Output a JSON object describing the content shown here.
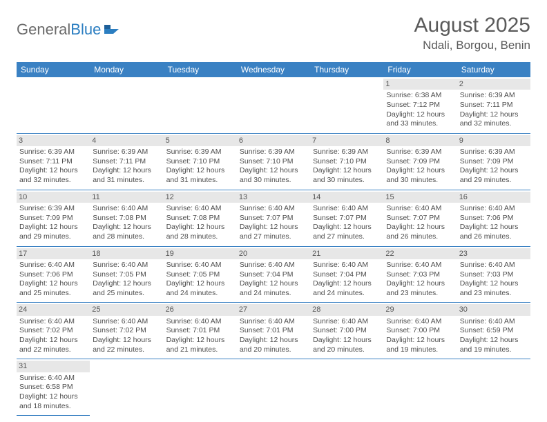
{
  "brand": {
    "part1": "General",
    "part2": "Blue"
  },
  "title": "August 2025",
  "location": "Ndali, Borgou, Benin",
  "colors": {
    "header_bg": "#3a81c3",
    "header_text": "#ffffff",
    "daynum_bg": "#e7e7e7",
    "row_border": "#3a81c3",
    "text": "#4d4d4d",
    "brand_gray": "#6a6a6a",
    "brand_blue": "#2b7ec1"
  },
  "weekdays": [
    "Sunday",
    "Monday",
    "Tuesday",
    "Wednesday",
    "Thursday",
    "Friday",
    "Saturday"
  ],
  "leading_blanks": 5,
  "days": [
    {
      "n": 1,
      "sunrise": "6:38 AM",
      "sunset": "7:12 PM",
      "daylight": "12 hours and 33 minutes."
    },
    {
      "n": 2,
      "sunrise": "6:39 AM",
      "sunset": "7:11 PM",
      "daylight": "12 hours and 32 minutes."
    },
    {
      "n": 3,
      "sunrise": "6:39 AM",
      "sunset": "7:11 PM",
      "daylight": "12 hours and 32 minutes."
    },
    {
      "n": 4,
      "sunrise": "6:39 AM",
      "sunset": "7:11 PM",
      "daylight": "12 hours and 31 minutes."
    },
    {
      "n": 5,
      "sunrise": "6:39 AM",
      "sunset": "7:10 PM",
      "daylight": "12 hours and 31 minutes."
    },
    {
      "n": 6,
      "sunrise": "6:39 AM",
      "sunset": "7:10 PM",
      "daylight": "12 hours and 30 minutes."
    },
    {
      "n": 7,
      "sunrise": "6:39 AM",
      "sunset": "7:10 PM",
      "daylight": "12 hours and 30 minutes."
    },
    {
      "n": 8,
      "sunrise": "6:39 AM",
      "sunset": "7:09 PM",
      "daylight": "12 hours and 30 minutes."
    },
    {
      "n": 9,
      "sunrise": "6:39 AM",
      "sunset": "7:09 PM",
      "daylight": "12 hours and 29 minutes."
    },
    {
      "n": 10,
      "sunrise": "6:39 AM",
      "sunset": "7:09 PM",
      "daylight": "12 hours and 29 minutes."
    },
    {
      "n": 11,
      "sunrise": "6:40 AM",
      "sunset": "7:08 PM",
      "daylight": "12 hours and 28 minutes."
    },
    {
      "n": 12,
      "sunrise": "6:40 AM",
      "sunset": "7:08 PM",
      "daylight": "12 hours and 28 minutes."
    },
    {
      "n": 13,
      "sunrise": "6:40 AM",
      "sunset": "7:07 PM",
      "daylight": "12 hours and 27 minutes."
    },
    {
      "n": 14,
      "sunrise": "6:40 AM",
      "sunset": "7:07 PM",
      "daylight": "12 hours and 27 minutes."
    },
    {
      "n": 15,
      "sunrise": "6:40 AM",
      "sunset": "7:07 PM",
      "daylight": "12 hours and 26 minutes."
    },
    {
      "n": 16,
      "sunrise": "6:40 AM",
      "sunset": "7:06 PM",
      "daylight": "12 hours and 26 minutes."
    },
    {
      "n": 17,
      "sunrise": "6:40 AM",
      "sunset": "7:06 PM",
      "daylight": "12 hours and 25 minutes."
    },
    {
      "n": 18,
      "sunrise": "6:40 AM",
      "sunset": "7:05 PM",
      "daylight": "12 hours and 25 minutes."
    },
    {
      "n": 19,
      "sunrise": "6:40 AM",
      "sunset": "7:05 PM",
      "daylight": "12 hours and 24 minutes."
    },
    {
      "n": 20,
      "sunrise": "6:40 AM",
      "sunset": "7:04 PM",
      "daylight": "12 hours and 24 minutes."
    },
    {
      "n": 21,
      "sunrise": "6:40 AM",
      "sunset": "7:04 PM",
      "daylight": "12 hours and 24 minutes."
    },
    {
      "n": 22,
      "sunrise": "6:40 AM",
      "sunset": "7:03 PM",
      "daylight": "12 hours and 23 minutes."
    },
    {
      "n": 23,
      "sunrise": "6:40 AM",
      "sunset": "7:03 PM",
      "daylight": "12 hours and 23 minutes."
    },
    {
      "n": 24,
      "sunrise": "6:40 AM",
      "sunset": "7:02 PM",
      "daylight": "12 hours and 22 minutes."
    },
    {
      "n": 25,
      "sunrise": "6:40 AM",
      "sunset": "7:02 PM",
      "daylight": "12 hours and 22 minutes."
    },
    {
      "n": 26,
      "sunrise": "6:40 AM",
      "sunset": "7:01 PM",
      "daylight": "12 hours and 21 minutes."
    },
    {
      "n": 27,
      "sunrise": "6:40 AM",
      "sunset": "7:01 PM",
      "daylight": "12 hours and 20 minutes."
    },
    {
      "n": 28,
      "sunrise": "6:40 AM",
      "sunset": "7:00 PM",
      "daylight": "12 hours and 20 minutes."
    },
    {
      "n": 29,
      "sunrise": "6:40 AM",
      "sunset": "7:00 PM",
      "daylight": "12 hours and 19 minutes."
    },
    {
      "n": 30,
      "sunrise": "6:40 AM",
      "sunset": "6:59 PM",
      "daylight": "12 hours and 19 minutes."
    },
    {
      "n": 31,
      "sunrise": "6:40 AM",
      "sunset": "6:58 PM",
      "daylight": "12 hours and 18 minutes."
    }
  ],
  "labels": {
    "sunrise": "Sunrise:",
    "sunset": "Sunset:",
    "daylight": "Daylight:"
  }
}
